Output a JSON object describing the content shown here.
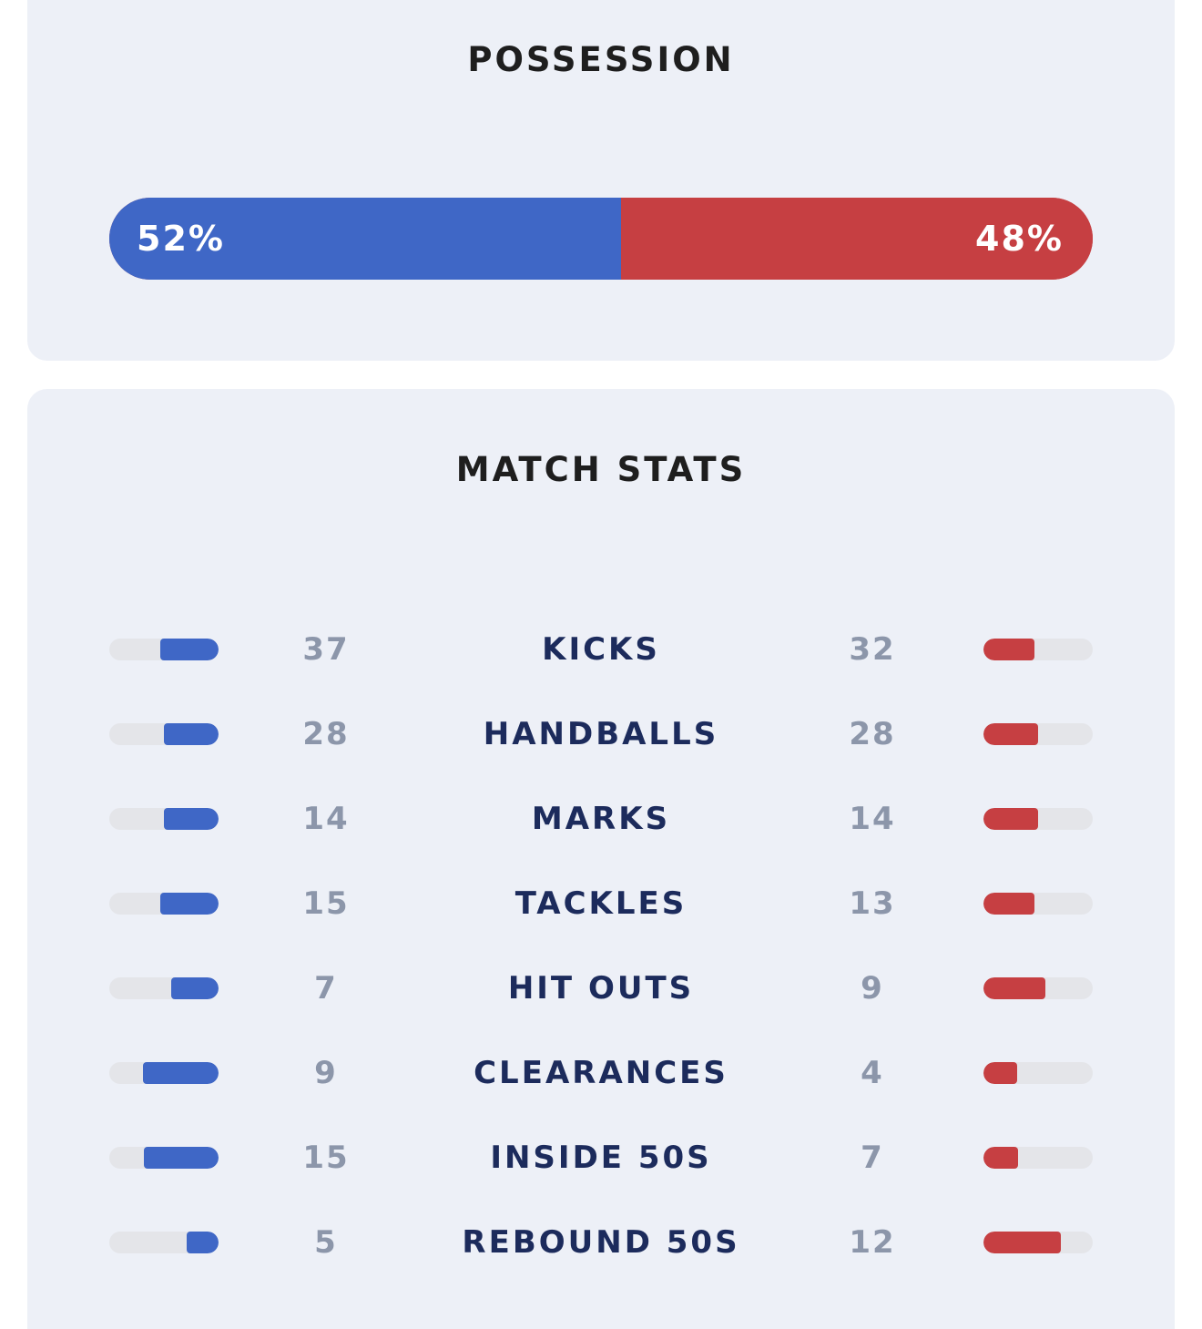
{
  "possession": {
    "title": "POSSESSION",
    "home_pct": 52,
    "away_pct": 48,
    "home_label": "52%",
    "away_label": "48%"
  },
  "match_stats": {
    "title": "MATCH STATS",
    "rows": [
      {
        "label": "KICKS",
        "home": "37",
        "away": "32"
      },
      {
        "label": "HANDBALLS",
        "home": "28",
        "away": "28"
      },
      {
        "label": "MARKS",
        "home": "14",
        "away": "14"
      },
      {
        "label": "TACKLES",
        "home": "15",
        "away": "13"
      },
      {
        "label": "HIT OUTS",
        "home": "7",
        "away": "9"
      },
      {
        "label": "CLEARANCES",
        "home": "9",
        "away": "4"
      },
      {
        "label": "INSIDE 50S",
        "home": "15",
        "away": "7"
      },
      {
        "label": "REBOUND 50S",
        "home": "5",
        "away": "12"
      }
    ]
  },
  "colors": {
    "home": "#3f67c6",
    "away": "#c63f42",
    "card_background": "#edf0f7",
    "stat_label": "#1c2b5c",
    "stat_value": "#8c96aa"
  }
}
